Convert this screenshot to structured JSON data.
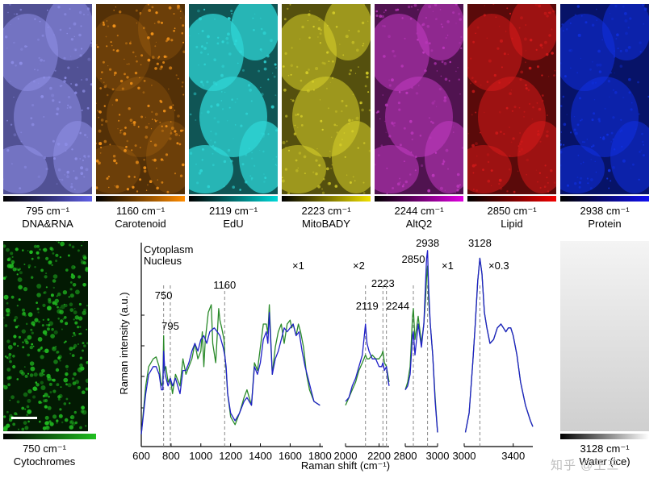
{
  "panels": [
    {
      "wavenumber": "795 cm⁻¹",
      "name": "DNA&RNA",
      "color": "#8f8fe8",
      "dark": "#3c3c78",
      "bar_end": "#6060e8"
    },
    {
      "wavenumber": "1160 cm⁻¹",
      "name": "Carotenoid",
      "color": "#ff9a1a",
      "dark": "#1a0c00",
      "bar_end": "#ff8c00"
    },
    {
      "wavenumber": "2119 cm⁻¹",
      "name": "EdU",
      "color": "#2fd6d6",
      "dark": "#062a2a",
      "bar_end": "#00d8d8"
    },
    {
      "wavenumber": "2223 cm⁻¹",
      "name": "MitoBADY",
      "color": "#d9d12a",
      "dark": "#2a2605",
      "bar_end": "#f0e000"
    },
    {
      "wavenumber": "2244 cm⁻¹",
      "name": "AltQ2",
      "color": "#c23ac2",
      "dark": "#2a062a",
      "bar_end": "#e000e0"
    },
    {
      "wavenumber": "2850 cm⁻¹",
      "name": "Lipid",
      "color": "#d61a1a",
      "dark": "#300404",
      "bar_end": "#f00000"
    },
    {
      "wavenumber": "2938 cm⁻¹",
      "name": "Protein",
      "color": "#1030e0",
      "dark": "#040a40",
      "bar_end": "#1010f0"
    }
  ],
  "cyto_panel": {
    "wavenumber": "750 cm⁻¹",
    "name": "Cytochromes",
    "color": "#22c022",
    "bar_end": "#20c020"
  },
  "water_panel": {
    "wavenumber": "3128 cm⁻¹",
    "name": "Water (ice)"
  },
  "watermark": "知乎 @王三",
  "chart_data": {
    "type": "line",
    "xlabel": "Raman shift (cm⁻¹)",
    "ylabel": "Raman intensity (a.u.)",
    "legend": [
      {
        "name": "Cytoplasm",
        "color": "#2a8a2a"
      },
      {
        "name": "Nucleus",
        "color": "#2020c8"
      }
    ],
    "segments": [
      {
        "scale_label": "×1",
        "xlim": [
          600,
          1820
        ],
        "xticks": [
          600,
          800,
          1000,
          1200,
          1400,
          1600,
          1800
        ],
        "markers": [
          {
            "x": 750,
            "label": "750"
          },
          {
            "x": 795,
            "label": "795"
          },
          {
            "x": 1160,
            "label": "1160"
          }
        ],
        "series": [
          {
            "name": "Cytoplasm",
            "x": [
              600,
              630,
              650,
              680,
              700,
              720,
              735,
              745,
              750,
              755,
              765,
              780,
              795,
              810,
              830,
              860,
              880,
              900,
              920,
              940,
              960,
              980,
              1000,
              1010,
              1020,
              1030,
              1050,
              1070,
              1080,
              1100,
              1120,
              1128,
              1140,
              1156,
              1160,
              1170,
              1180,
              1200,
              1230,
              1260,
              1290,
              1310,
              1340,
              1360,
              1380,
              1400,
              1420,
              1440,
              1450,
              1460,
              1480,
              1500,
              1520,
              1540,
              1560,
              1580,
              1600,
              1610,
              1620,
              1640,
              1655,
              1670,
              1690,
              1710,
              1730,
              1760,
              1800
            ],
            "y": [
              0.97,
              0.72,
              0.62,
              0.58,
              0.57,
              0.62,
              0.72,
              0.7,
              0.46,
              0.64,
              0.62,
              0.7,
              0.68,
              0.76,
              0.66,
              0.72,
              0.58,
              0.66,
              0.62,
              0.58,
              0.5,
              0.58,
              0.54,
              0.44,
              0.62,
              0.48,
              0.34,
              0.3,
              0.5,
              0.6,
              0.32,
              0.38,
              0.42,
              0.48,
              0.55,
              0.64,
              0.76,
              0.88,
              0.92,
              0.86,
              0.78,
              0.74,
              0.82,
              0.6,
              0.64,
              0.52,
              0.4,
              0.4,
              0.45,
              0.3,
              0.66,
              0.52,
              0.44,
              0.4,
              0.5,
              0.4,
              0.38,
              0.42,
              0.4,
              0.46,
              0.4,
              0.44,
              0.52,
              0.66,
              0.74,
              0.8,
              0.82
            ]
          },
          {
            "name": "Nucleus",
            "x": [
              600,
              630,
              650,
              680,
              700,
              720,
              735,
              745,
              750,
              760,
              780,
              795,
              810,
              830,
              860,
              880,
              900,
              920,
              940,
              960,
              980,
              1000,
              1020,
              1040,
              1060,
              1090,
              1110,
              1128,
              1150,
              1160,
              1170,
              1180,
              1200,
              1230,
              1260,
              1290,
              1310,
              1340,
              1360,
              1380,
              1400,
              1420,
              1440,
              1450,
              1460,
              1480,
              1500,
              1520,
              1540,
              1560,
              1580,
              1600,
              1620,
              1640,
              1660,
              1680,
              1700,
              1720,
              1740,
              1760,
              1800
            ],
            "y": [
              0.97,
              0.76,
              0.66,
              0.62,
              0.62,
              0.66,
              0.74,
              0.74,
              0.54,
              0.66,
              0.72,
              0.68,
              0.72,
              0.68,
              0.76,
              0.64,
              0.64,
              0.6,
              0.54,
              0.5,
              0.54,
              0.48,
              0.46,
              0.5,
              0.44,
              0.42,
              0.44,
              0.46,
              0.52,
              0.56,
              0.62,
              0.76,
              0.86,
              0.9,
              0.86,
              0.8,
              0.78,
              0.82,
              0.62,
              0.66,
              0.6,
              0.48,
              0.44,
              0.5,
              0.34,
              0.66,
              0.58,
              0.54,
              0.48,
              0.42,
              0.44,
              0.42,
              0.4,
              0.46,
              0.44,
              0.54,
              0.62,
              0.68,
              0.74,
              0.8,
              0.82
            ]
          }
        ]
      },
      {
        "scale_label": "×2",
        "xlim": [
          2000,
          2260
        ],
        "xticks": [
          2000,
          2200
        ],
        "markers": [
          {
            "x": 2119,
            "label": "2119"
          },
          {
            "x": 2223,
            "label": "2223"
          },
          {
            "x": 2244,
            "label": "2244"
          }
        ],
        "series": [
          {
            "name": "Cytoplasm",
            "x": [
              2000,
              2020,
              2040,
              2060,
              2080,
              2100,
              2110,
              2119,
              2128,
              2140,
              2160,
              2180,
              2200,
              2215,
              2223,
              2232,
              2244,
              2252,
              2260
            ],
            "y": [
              0.82,
              0.78,
              0.74,
              0.7,
              0.64,
              0.6,
              0.58,
              0.56,
              0.58,
              0.58,
              0.56,
              0.58,
              0.58,
              0.56,
              0.54,
              0.6,
              0.62,
              0.66,
              0.7
            ]
          },
          {
            "name": "Nucleus",
            "x": [
              2000,
              2020,
              2040,
              2060,
              2080,
              2100,
              2110,
              2119,
              2128,
              2140,
              2160,
              2180,
              2200,
              2215,
              2223,
              2232,
              2244,
              2252,
              2260
            ],
            "y": [
              0.8,
              0.78,
              0.72,
              0.68,
              0.62,
              0.56,
              0.48,
              0.4,
              0.5,
              0.54,
              0.58,
              0.58,
              0.62,
              0.62,
              0.6,
              0.64,
              0.62,
              0.68,
              0.72
            ]
          }
        ]
      },
      {
        "scale_label": "×1",
        "xlim": [
          2800,
          3000
        ],
        "xticks": [
          2800,
          3000
        ],
        "markers": [
          {
            "x": 2850,
            "label": "2850"
          },
          {
            "x": 2938,
            "label": "2938"
          }
        ],
        "series": [
          {
            "name": "Cytoplasm",
            "x": [
              2800,
              2815,
              2830,
              2845,
              2850,
              2860,
              2880,
              2900,
              2915,
              2925,
              2932,
              2938,
              2945,
              2955,
              2970,
              2985,
              3000
            ],
            "y": [
              0.74,
              0.7,
              0.62,
              0.36,
              0.32,
              0.48,
              0.36,
              0.5,
              0.4,
              0.28,
              0.16,
              0.1,
              0.28,
              0.4,
              0.56,
              0.78,
              0.96
            ]
          },
          {
            "name": "Nucleus",
            "x": [
              2800,
              2815,
              2830,
              2845,
              2850,
              2860,
              2880,
              2900,
              2915,
              2925,
              2932,
              2938,
              2945,
              2955,
              2970,
              2985,
              3000
            ],
            "y": [
              0.74,
              0.72,
              0.66,
              0.46,
              0.44,
              0.56,
              0.4,
              0.52,
              0.4,
              0.2,
              0.06,
              0.02,
              0.22,
              0.4,
              0.56,
              0.8,
              0.96
            ]
          }
        ]
      },
      {
        "scale_label": "×0.3",
        "xlim": [
          3000,
          3560
        ],
        "xticks": [
          3000,
          3400
        ],
        "markers": [
          {
            "x": 3128,
            "label": "3128"
          }
        ],
        "series": [
          {
            "name": "Cytoplasm",
            "x": [
              3010,
              3040,
              3070,
              3090,
              3110,
              3128,
              3145,
              3165,
              3185,
              3210,
              3240,
              3270,
              3300,
              3320,
              3340,
              3360,
              3380,
              3400,
              3430,
              3460,
              3500,
              3540,
              3560
            ],
            "y": [
              0.96,
              0.86,
              0.6,
              0.4,
              0.18,
              0.06,
              0.14,
              0.34,
              0.42,
              0.5,
              0.48,
              0.42,
              0.4,
              0.42,
              0.44,
              0.42,
              0.42,
              0.46,
              0.56,
              0.7,
              0.82,
              0.9,
              0.93
            ]
          },
          {
            "name": "Nucleus",
            "x": [
              3010,
              3040,
              3070,
              3090,
              3110,
              3128,
              3145,
              3165,
              3185,
              3210,
              3240,
              3270,
              3300,
              3320,
              3340,
              3360,
              3380,
              3400,
              3430,
              3460,
              3500,
              3540,
              3560
            ],
            "y": [
              0.96,
              0.86,
              0.6,
              0.4,
              0.18,
              0.06,
              0.14,
              0.34,
              0.42,
              0.5,
              0.48,
              0.42,
              0.4,
              0.42,
              0.44,
              0.42,
              0.42,
              0.46,
              0.56,
              0.7,
              0.82,
              0.9,
              0.93
            ]
          }
        ]
      }
    ]
  }
}
